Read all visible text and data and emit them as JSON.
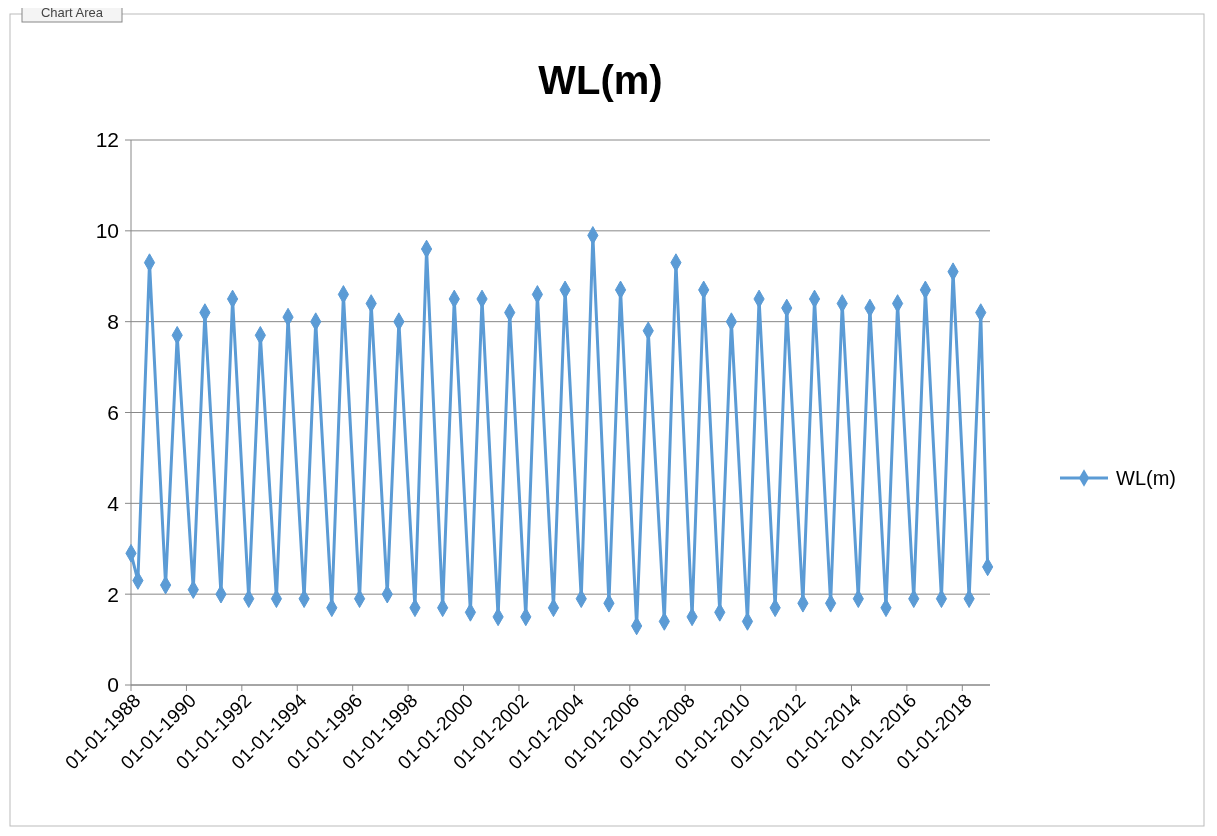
{
  "chart_data": {
    "type": "line",
    "title": "WL(m)",
    "annotations": [
      "Chart Area"
    ],
    "x": [
      "1988-01",
      "1988-04",
      "1988-09",
      "1989-04",
      "1989-09",
      "1990-04",
      "1990-09",
      "1991-04",
      "1991-09",
      "1992-04",
      "1992-09",
      "1993-04",
      "1993-09",
      "1994-04",
      "1994-09",
      "1995-04",
      "1995-09",
      "1996-04",
      "1996-09",
      "1997-04",
      "1997-09",
      "1998-04",
      "1998-09",
      "1999-04",
      "1999-09",
      "2000-04",
      "2000-09",
      "2001-04",
      "2001-09",
      "2002-04",
      "2002-09",
      "2003-04",
      "2003-09",
      "2004-04",
      "2004-09",
      "2005-04",
      "2005-09",
      "2006-04",
      "2006-09",
      "2007-04",
      "2007-09",
      "2008-04",
      "2008-09",
      "2009-04",
      "2009-09",
      "2010-04",
      "2010-09",
      "2011-04",
      "2011-09",
      "2012-04",
      "2012-09",
      "2013-04",
      "2013-09",
      "2014-04",
      "2014-09",
      "2015-04",
      "2015-09",
      "2016-04",
      "2016-09",
      "2017-04",
      "2017-09",
      "2018-04",
      "2018-09",
      "2018-12"
    ],
    "series": [
      {
        "name": "WL(m)",
        "color": "#5b9bd5",
        "values": [
          2.9,
          2.3,
          9.3,
          2.2,
          7.7,
          2.1,
          8.2,
          2.0,
          8.5,
          1.9,
          7.7,
          1.9,
          8.1,
          1.9,
          8.0,
          1.7,
          8.6,
          1.9,
          8.4,
          2.0,
          8.0,
          1.7,
          9.6,
          1.7,
          8.5,
          1.6,
          8.5,
          1.5,
          8.2,
          1.5,
          8.6,
          1.7,
          8.7,
          1.9,
          9.9,
          1.8,
          8.7,
          1.3,
          7.8,
          1.4,
          9.3,
          1.5,
          8.7,
          1.6,
          8.0,
          1.4,
          8.5,
          1.7,
          8.3,
          1.8,
          8.5,
          1.8,
          8.4,
          1.9,
          8.3,
          1.7,
          8.4,
          1.9,
          8.7,
          1.9,
          9.1,
          1.9,
          8.2,
          2.6
        ]
      }
    ],
    "xlim": [
      "1988-01-01",
      "2019-01-01"
    ],
    "xticks": [
      {
        "value": "1988-01-01",
        "label": "01-01-1988"
      },
      {
        "value": "1990-01-01",
        "label": "01-01-1990"
      },
      {
        "value": "1992-01-01",
        "label": "01-01-1992"
      },
      {
        "value": "1994-01-01",
        "label": "01-01-1994"
      },
      {
        "value": "1996-01-01",
        "label": "01-01-1996"
      },
      {
        "value": "1998-01-01",
        "label": "01-01-1998"
      },
      {
        "value": "2000-01-01",
        "label": "01-01-2000"
      },
      {
        "value": "2002-01-01",
        "label": "01-01-2002"
      },
      {
        "value": "2004-01-01",
        "label": "01-01-2004"
      },
      {
        "value": "2006-01-01",
        "label": "01-01-2006"
      },
      {
        "value": "2008-01-01",
        "label": "01-01-2008"
      },
      {
        "value": "2010-01-01",
        "label": "01-01-2010"
      },
      {
        "value": "2012-01-01",
        "label": "01-01-2012"
      },
      {
        "value": "2014-01-01",
        "label": "01-01-2014"
      },
      {
        "value": "2016-01-01",
        "label": "01-01-2016"
      },
      {
        "value": "2018-01-01",
        "label": "01-01-2018"
      }
    ],
    "ylim": [
      0,
      12
    ],
    "yticks": [
      0,
      2,
      4,
      6,
      8,
      10,
      12
    ],
    "grid": "y",
    "legend": "right",
    "marker": "diamond",
    "line_style": "solid"
  }
}
